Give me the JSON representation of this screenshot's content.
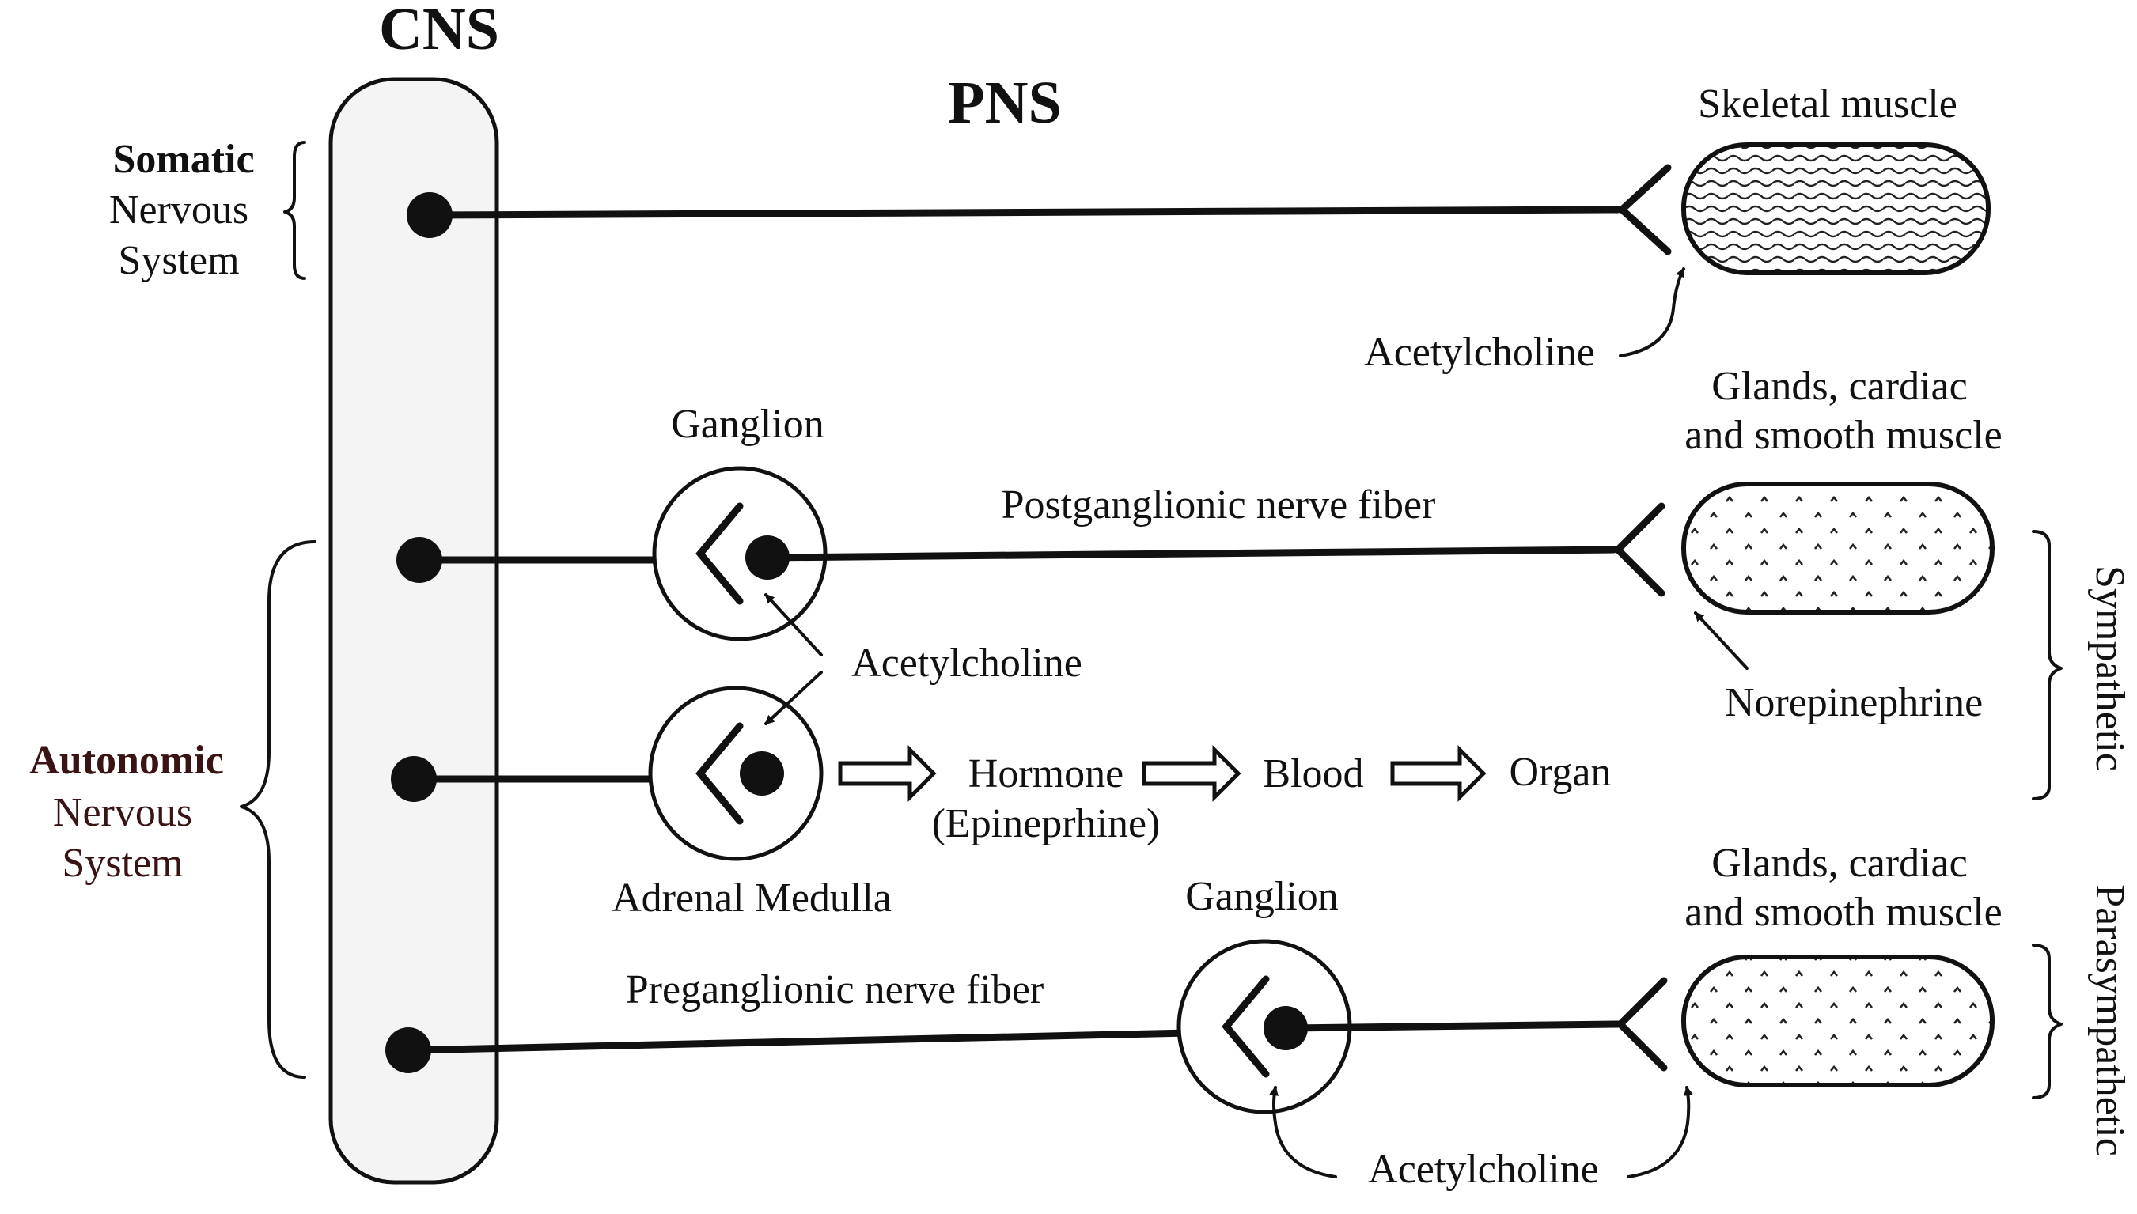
{
  "labels": {
    "cns": "CNS",
    "pns": "PNS",
    "somatic_line1": "Somatic",
    "somatic_line2": "Nervous",
    "somatic_line3": "System",
    "autonomic_line1": "Autonomic",
    "autonomic_line2": "Nervous",
    "autonomic_line3": "System",
    "skeletal_muscle": "Skeletal muscle",
    "acetylcholine_somatic": "Acetylcholine",
    "glands_top_line1": "Glands, cardiac",
    "glands_top_line2": "and smooth muscle",
    "ganglion_sympathetic": "Ganglion",
    "postganglionic_fiber": "Postganglionic nerve fiber",
    "acetylcholine_middle": "Acetylcholine",
    "norepinephrine": "Norepinephrine",
    "sympathetic": "Sympathetic",
    "hormone": "Hormone",
    "epinephrine": "(Epineprhine)",
    "blood": "Blood",
    "organ": "Organ",
    "adrenal_medulla": "Adrenal Medulla",
    "ganglion_parasympathetic": "Ganglion",
    "glands_bottom_line1": "Glands, cardiac",
    "glands_bottom_line2": "and smooth muscle",
    "parasympathetic": "Parasympathetic",
    "preganglionic_fiber": "Preganglionic nerve fiber",
    "acetylcholine_bottom": "Acetylcholine"
  },
  "colors": {
    "ink": "#111111",
    "autonomic_text": "#3a1414",
    "panel_fill": "#f4f4f4"
  }
}
